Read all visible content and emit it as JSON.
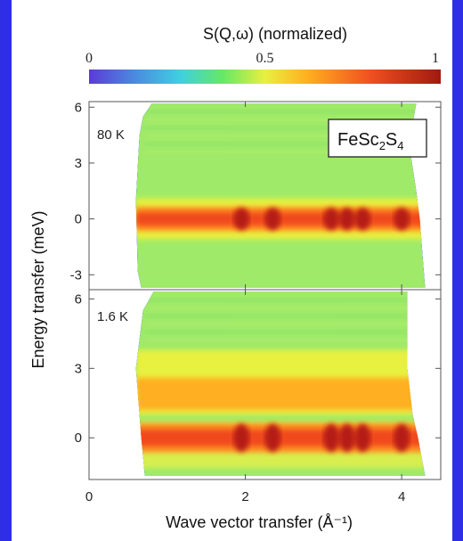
{
  "background_color": "#2e2ee6",
  "chart_data": {
    "type": "heatmap",
    "title": "S(Q,ω) (normalized)",
    "colorbar": {
      "ticks": [
        {
          "label": "0",
          "value": 0
        },
        {
          "label": "0.5",
          "value": 0.5
        },
        {
          "label": "1",
          "value": 1
        }
      ],
      "colors": [
        "#5b3bd6",
        "#4a90e0",
        "#3fd0e0",
        "#66e866",
        "#e8f040",
        "#ffb020",
        "#f05020",
        "#a01a10"
      ]
    },
    "xlabel": "Wave vector transfer (Å⁻¹)",
    "ylabel": "Energy transfer (meV)",
    "xlim": [
      0,
      4.5
    ],
    "x_ticks": [
      {
        "label": "0",
        "value": 0
      },
      {
        "label": "2",
        "value": 2
      },
      {
        "label": "4",
        "value": 4
      }
    ],
    "panels": [
      {
        "temperature": "80 K",
        "compound_label": "FeSc₂S₄",
        "compound": {
          "base": "FeSc",
          "sub1": "2",
          "mid": "S",
          "sub2": "4"
        },
        "ylim": [
          -3.8,
          6.3
        ],
        "y_ticks": [
          {
            "label": "6",
            "value": 6
          },
          {
            "label": "3",
            "value": 3
          },
          {
            "label": "0",
            "value": 0
          },
          {
            "label": "-3",
            "value": -3
          }
        ],
        "q_range": [
          0.6,
          4.3
        ],
        "elastic_peak_energy": 0,
        "intense_q": [
          1.95,
          2.35,
          3.1,
          3.3,
          3.5,
          4.0
        ]
      },
      {
        "temperature": "1.6 K",
        "ylim": [
          -1.8,
          6.4
        ],
        "y_ticks": [
          {
            "label": "6",
            "value": 6
          },
          {
            "label": "3",
            "value": 3
          },
          {
            "label": "0",
            "value": 0
          }
        ],
        "q_range": [
          0.6,
          4.3
        ],
        "elastic_peak_energy": 0,
        "inelastic_band_energy": [
          1.2,
          2.6
        ],
        "intense_q": [
          1.95,
          2.35,
          3.1,
          3.3,
          3.5,
          4.0
        ]
      }
    ]
  }
}
